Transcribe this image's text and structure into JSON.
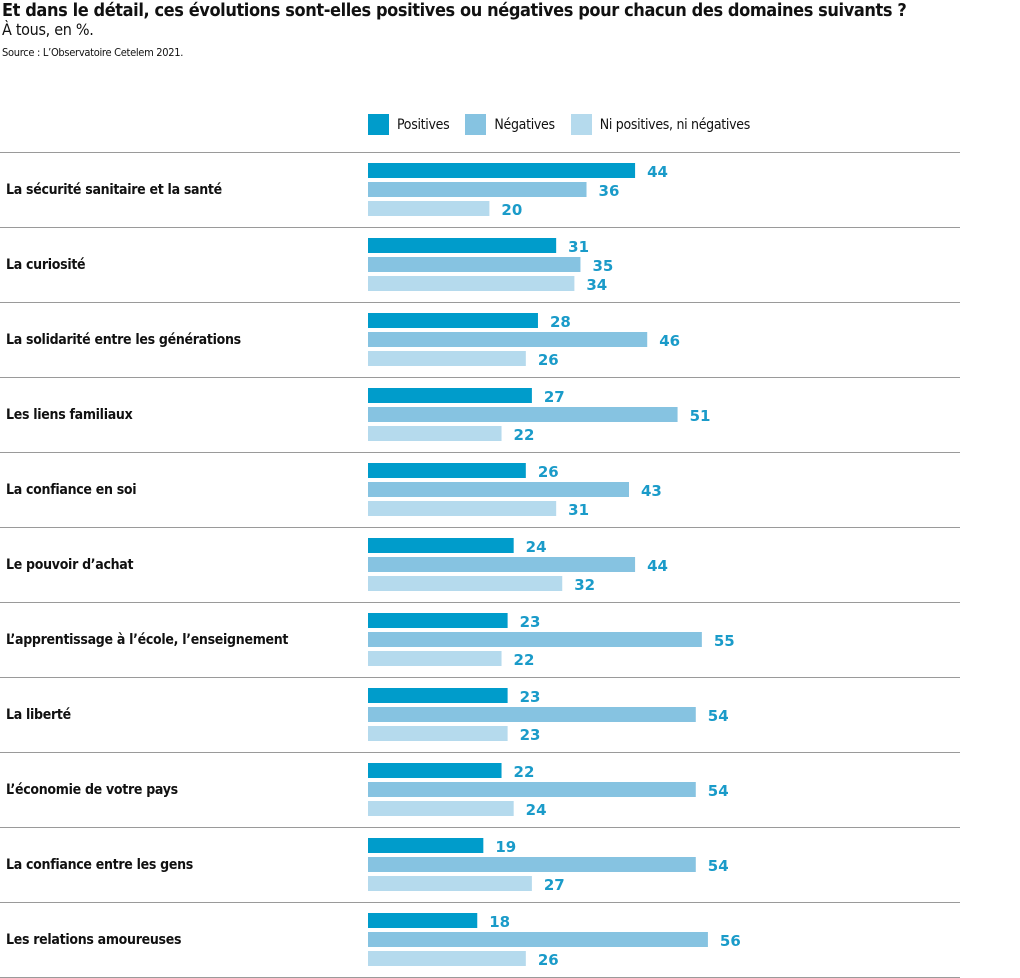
{
  "chart_data": {
    "type": "bar",
    "orientation": "horizontal",
    "title": "Et dans le détail, ces évolutions sont-elles positives ou négatives pour chacun des domaines suivants ?",
    "subtitle": "À tous, en %.",
    "source": "Source : L’Observatoire Cetelem 2021.",
    "legend_placement": "top",
    "grid": false,
    "xlim": [
      0,
      60
    ],
    "categories": [
      "La sécurité sanitaire et la santé",
      "La curiosité",
      "La solidarité entre les générations",
      "Les liens familiaux",
      "La confiance en soi",
      "Le pouvoir d’achat",
      "L’apprentissage à l’école, l’enseignement",
      "La liberté",
      "L’économie de votre pays",
      "La confiance entre les gens",
      "Les relations amoureuses"
    ],
    "series": [
      {
        "name": "Positives",
        "color": "#009ccb",
        "values": [
          44,
          31,
          28,
          27,
          26,
          24,
          23,
          23,
          22,
          19,
          18
        ]
      },
      {
        "name": "Négatives",
        "color": "#86c3e1",
        "values": [
          36,
          35,
          46,
          51,
          43,
          44,
          55,
          54,
          54,
          54,
          56
        ]
      },
      {
        "name": "Ni positives, ni négatives",
        "color": "#b5daed",
        "values": [
          20,
          34,
          26,
          22,
          31,
          32,
          22,
          23,
          24,
          27,
          26
        ]
      }
    ],
    "label_color": "#1a9bc9"
  }
}
